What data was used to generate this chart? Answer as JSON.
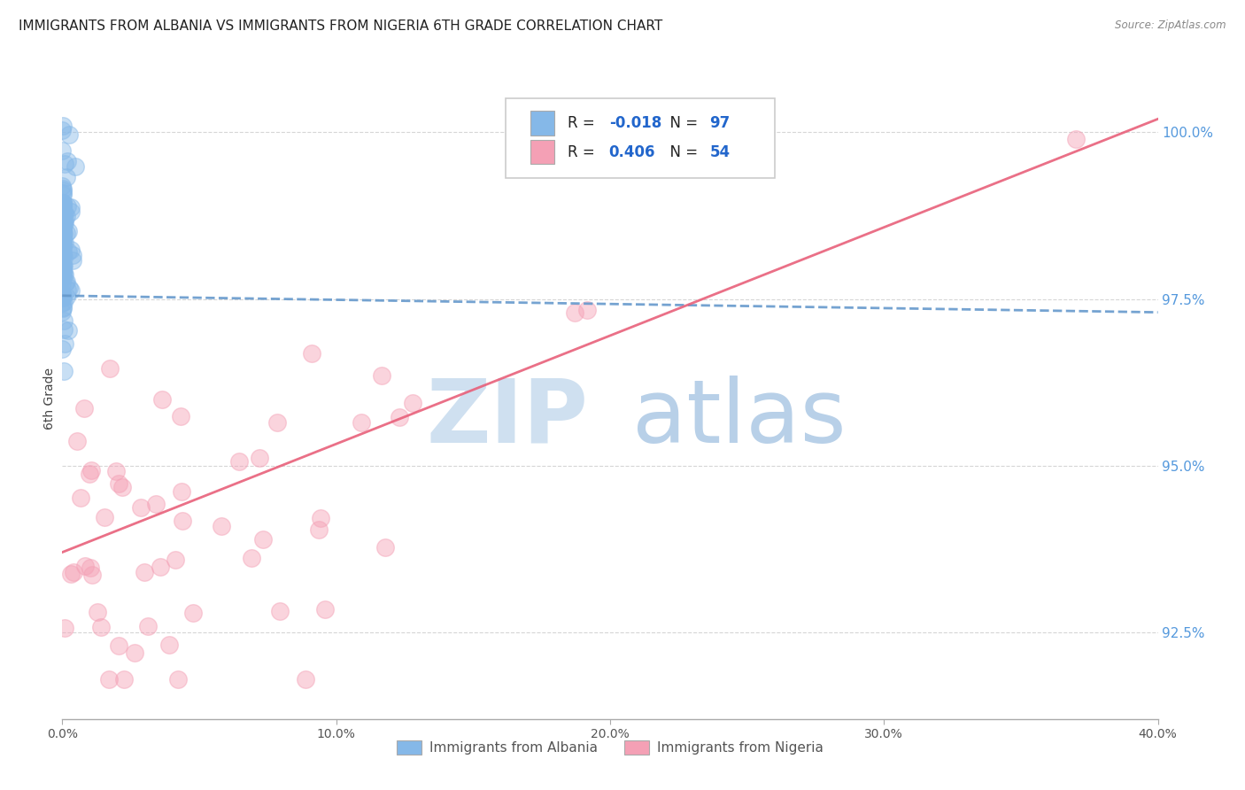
{
  "title": "IMMIGRANTS FROM ALBANIA VS IMMIGRANTS FROM NIGERIA 6TH GRADE CORRELATION CHART",
  "source": "Source: ZipAtlas.com",
  "ylabel": "6th Grade",
  "ylabel_right_labels": [
    "100.0%",
    "97.5%",
    "95.0%",
    "92.5%"
  ],
  "ylabel_right_values": [
    1.0,
    0.975,
    0.95,
    0.925
  ],
  "xlim": [
    0.0,
    0.4
  ],
  "ylim": [
    0.912,
    1.008
  ],
  "albania_R": -0.018,
  "albania_N": 97,
  "nigeria_R": 0.406,
  "nigeria_N": 54,
  "legend_albania": "Immigrants from Albania",
  "legend_nigeria": "Immigrants from Nigeria",
  "color_albania": "#85b8e8",
  "color_nigeria": "#f4a0b5",
  "trendline_albania_color": "#6699cc",
  "trendline_nigeria_color": "#e8607a",
  "watermark_zip_color": "#cfe0f0",
  "watermark_atlas_color": "#b8d0e8",
  "grid_color": "#cccccc",
  "background_color": "#ffffff",
  "title_fontsize": 11,
  "axis_label_fontsize": 10,
  "tick_fontsize": 10,
  "right_tick_color": "#5599dd",
  "legend_text_R_color": "#2266cc",
  "legend_text_N_color": "#2266cc",
  "albania_trendline_x0": 0.0,
  "albania_trendline_x1": 0.4,
  "albania_trendline_y0": 0.9755,
  "albania_trendline_y1": 0.973,
  "nigeria_trendline_x0": 0.0,
  "nigeria_trendline_x1": 0.4,
  "nigeria_trendline_y0": 0.937,
  "nigeria_trendline_y1": 1.002
}
